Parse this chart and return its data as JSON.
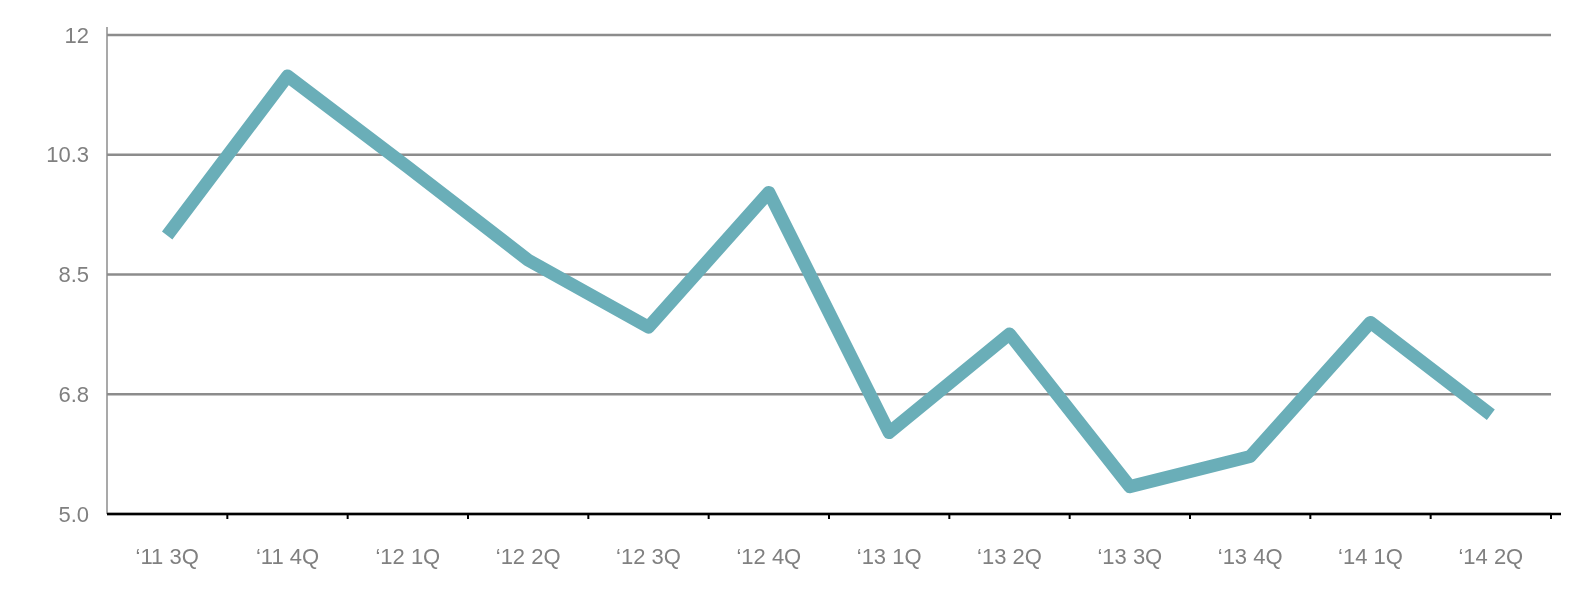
{
  "chart_data": {
    "type": "line",
    "categories": [
      "‘11 3Q",
      "‘11 4Q",
      "‘12 1Q",
      "‘12 2Q",
      "‘12 3Q",
      "‘12 4Q",
      "‘13 1Q",
      "‘13 2Q",
      "‘13 3Q",
      "‘13 4Q",
      "‘14 1Q",
      "‘14 2Q"
    ],
    "series": [
      {
        "color": "#6aaeb8",
        "values": [
          9.07,
          11.4,
          10.07,
          8.71,
          7.73,
          9.7,
          6.19,
          7.63,
          5.4,
          5.84,
          7.8,
          6.45
        ]
      }
    ],
    "ylim": [
      5,
      12
    ],
    "yticks": [
      {
        "value": 5,
        "label": "5.0"
      },
      {
        "value": 6.75,
        "label": "6.8"
      },
      8.5,
      {
        "value": 10.25,
        "label": "10.3"
      },
      12
    ],
    "grid": "y",
    "marker": "none",
    "line_style": "solid"
  }
}
